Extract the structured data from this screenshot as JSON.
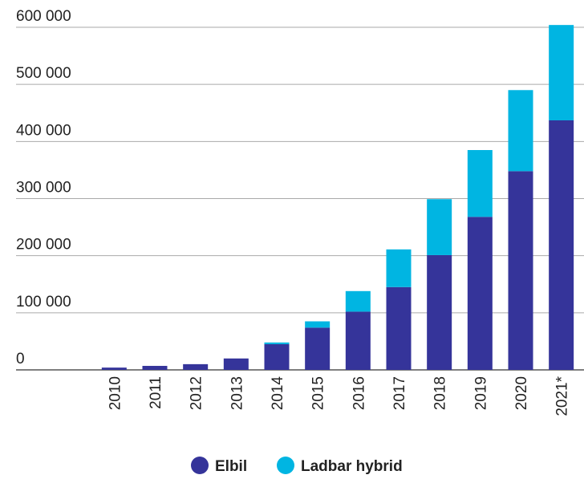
{
  "chart_data": {
    "type": "stacked_bar",
    "categories": [
      "2010",
      "2011",
      "2012",
      "2013",
      "2014",
      "2015",
      "2016",
      "2017",
      "2018",
      "2019",
      "2020",
      "2021*"
    ],
    "series": [
      {
        "name": "Elbil",
        "color": "#35349a",
        "values": [
          4000,
          7000,
          10000,
          20000,
          45000,
          74000,
          102000,
          145000,
          201000,
          268000,
          348000,
          437000
        ]
      },
      {
        "name": "Ladbar hybrid",
        "color": "#00b5e2",
        "values": [
          0,
          0,
          0,
          0,
          3000,
          11000,
          36000,
          66000,
          98000,
          117000,
          142000,
          167000
        ]
      }
    ],
    "ylim": [
      0,
      600000
    ],
    "yticks": [
      0,
      {
        "value": 100000,
        "label": "100 000"
      },
      {
        "value": 200000,
        "label": "200 000"
      },
      {
        "value": 300000,
        "label": "300 000"
      },
      {
        "value": 400000,
        "label": "400 000"
      },
      {
        "value": 500000,
        "label": "500 000"
      },
      {
        "value": 600000,
        "label": "600 000"
      }
    ],
    "grid": true,
    "legend": "bottom"
  }
}
